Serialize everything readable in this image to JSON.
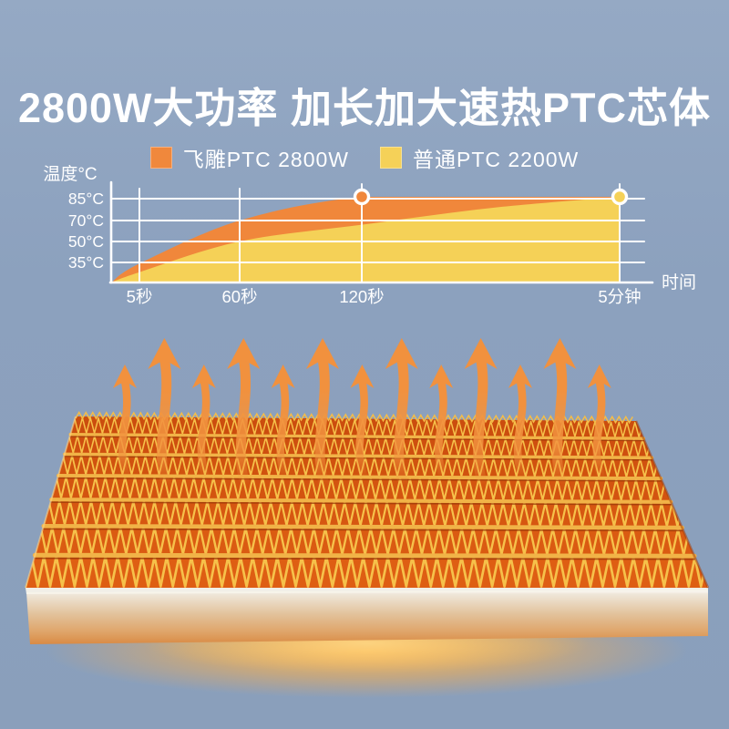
{
  "title": {
    "text": "2800W大功率 加长加大速热PTC芯体"
  },
  "legend": [
    {
      "label": "飞雕PTC 2800W",
      "color": "#F0883C"
    },
    {
      "label": "普通PTC 2200W",
      "color": "#F5D158"
    }
  ],
  "chart_data": {
    "type": "area",
    "title": "",
    "xlabel": "时间",
    "ylabel": "温度°C",
    "x_ticks": [
      "5秒",
      "60秒",
      "120秒",
      "5分钟"
    ],
    "y_ticks": [
      "85°C",
      "70°C",
      "50°C",
      "35°C"
    ],
    "x_seconds": [
      0,
      5,
      60,
      120,
      210,
      300
    ],
    "series": [
      {
        "name": "飞雕PTC 2800W",
        "color": "#F0873B",
        "values_c": [
          0,
          33,
          70,
          85,
          85,
          85
        ],
        "marker": {
          "x": "120秒",
          "y_c": 85
        }
      },
      {
        "name": "普通PTC 2200W",
        "color": "#F5D157",
        "values_c": [
          0,
          18,
          50,
          66,
          78,
          85
        ],
        "marker": {
          "x": "5分钟",
          "y_c": 85
        }
      }
    ],
    "grid": true,
    "legend_position": "top",
    "axis_color": "#FFFFFF"
  },
  "product": {
    "name": "PTC heating element with corrugated fins",
    "heat_arrows": {
      "count": 13,
      "color": "#F1913E",
      "icon": "heat-arrow-icon"
    },
    "fin_gold": "#F6C14A",
    "fin_base_back": "#C94C0E",
    "fin_base_front": "#DE6013",
    "glow_color": "#FFC15C"
  }
}
